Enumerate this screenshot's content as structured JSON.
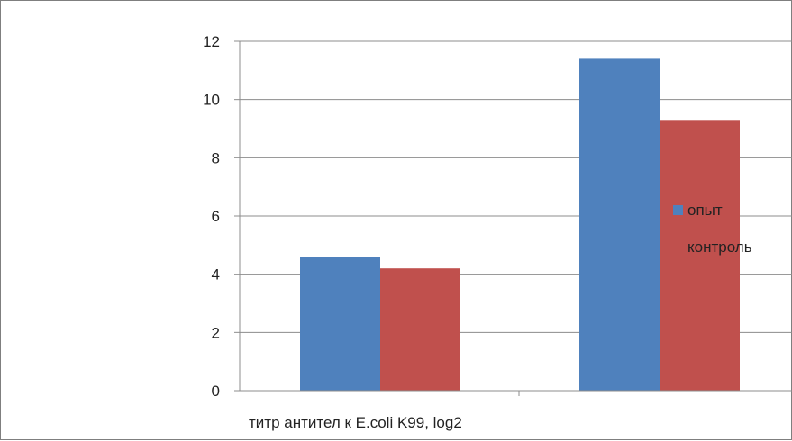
{
  "chart_data": {
    "type": "bar",
    "categories": [
      "",
      ""
    ],
    "series": [
      {
        "name": "опыт",
        "values": [
          4.6,
          11.4
        ],
        "color": "#4f81bd"
      },
      {
        "name": "контроль",
        "values": [
          4.2,
          9.3
        ],
        "color": "#c0504d"
      }
    ],
    "xlabel": "титр антител к E.coli K99, log2",
    "ylim": [
      0,
      12
    ],
    "yticks": [
      0,
      2,
      4,
      6,
      8,
      10,
      12
    ],
    "grid": true,
    "legend": "right"
  }
}
